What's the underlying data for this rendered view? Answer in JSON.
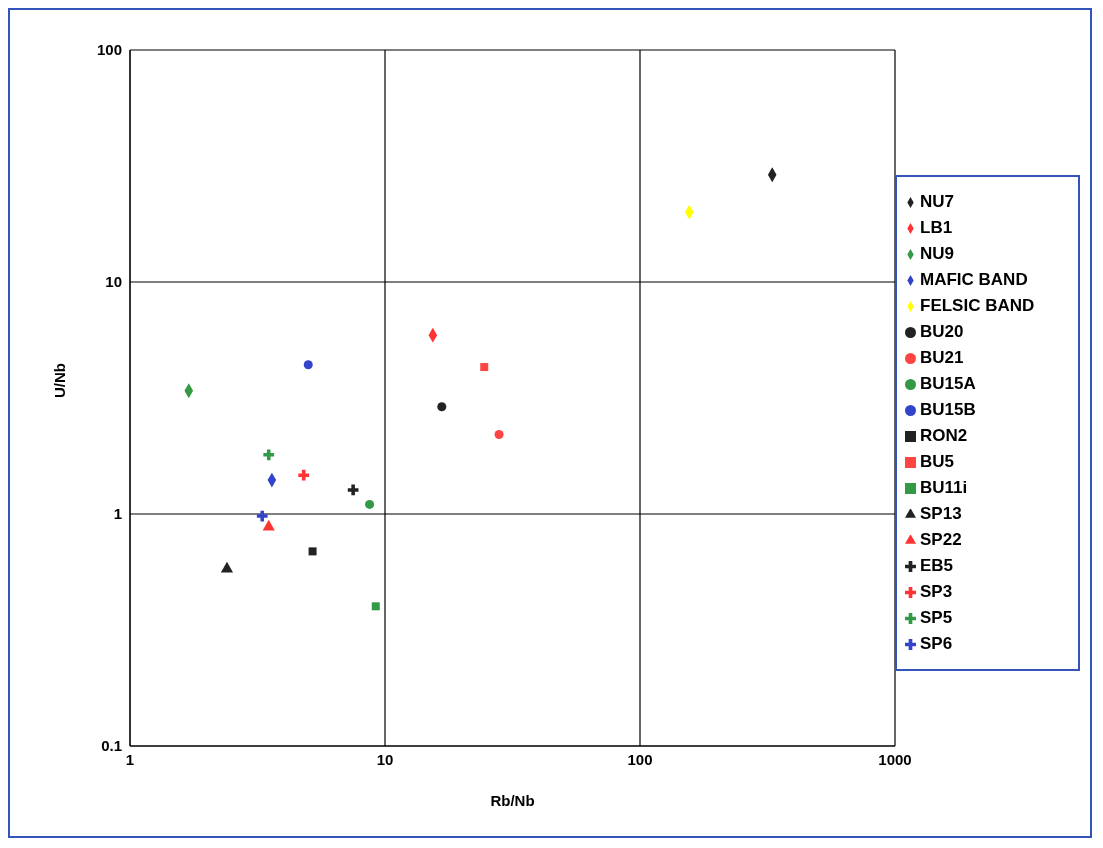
{
  "chart_data": {
    "type": "scatter",
    "xlabel": "Rb/Nb",
    "ylabel": "U/Nb",
    "log": "xy",
    "grid": true,
    "legend": "right",
    "xlim": [
      1,
      1000
    ],
    "ylim": [
      0.1,
      100
    ],
    "xticks": [
      1,
      10,
      100,
      1000
    ],
    "yticks": [
      0.1,
      1,
      10,
      100
    ],
    "series": [
      {
        "name": "NU7",
        "color": "#222222",
        "marker": "diamond",
        "x": [
          330
        ],
        "values": [
          29
        ]
      },
      {
        "name": "LB1",
        "color": "#ff3333",
        "marker": "diamond",
        "x": [
          15.4
        ],
        "values": [
          5.9
        ]
      },
      {
        "name": "NU9",
        "color": "#339944",
        "marker": "diamond",
        "x": [
          1.7
        ],
        "values": [
          3.4
        ]
      },
      {
        "name": "MAFIC BAND",
        "color": "#3344cc",
        "marker": "diamond",
        "x": [
          3.6
        ],
        "values": [
          1.4
        ]
      },
      {
        "name": "FELSIC BAND",
        "color": "#ffff00",
        "marker": "diamond",
        "x": [
          156
        ],
        "values": [
          20
        ]
      },
      {
        "name": "BU20",
        "color": "#222222",
        "marker": "circle",
        "x": [
          16.7
        ],
        "values": [
          2.9
        ]
      },
      {
        "name": "BU21",
        "color": "#ff4444",
        "marker": "circle",
        "x": [
          28
        ],
        "values": [
          2.2
        ]
      },
      {
        "name": "BU15A",
        "color": "#339944",
        "marker": "circle",
        "x": [
          8.7
        ],
        "values": [
          1.1
        ]
      },
      {
        "name": "BU15B",
        "color": "#3344cc",
        "marker": "circle",
        "x": [
          5
        ],
        "values": [
          4.4
        ]
      },
      {
        "name": "RON2",
        "color": "#222222",
        "marker": "square",
        "x": [
          5.2
        ],
        "values": [
          0.69
        ]
      },
      {
        "name": "BU5",
        "color": "#ff4444",
        "marker": "square",
        "x": [
          24.5
        ],
        "values": [
          4.3
        ]
      },
      {
        "name": "BU11i",
        "color": "#339944",
        "marker": "square",
        "x": [
          9.2
        ],
        "values": [
          0.4
        ]
      },
      {
        "name": "SP13",
        "color": "#222222",
        "marker": "triangle",
        "x": [
          2.4
        ],
        "values": [
          0.58
        ]
      },
      {
        "name": "SP22",
        "color": "#ff3333",
        "marker": "triangle",
        "x": [
          3.5
        ],
        "values": [
          0.88
        ]
      },
      {
        "name": "EB5",
        "color": "#222222",
        "marker": "cross",
        "x": [
          7.5
        ],
        "values": [
          1.27
        ]
      },
      {
        "name": "SP3",
        "color": "#ff3333",
        "marker": "cross",
        "x": [
          4.8
        ],
        "values": [
          1.47
        ]
      },
      {
        "name": "SP5",
        "color": "#339944",
        "marker": "cross",
        "x": [
          3.5
        ],
        "values": [
          1.8
        ]
      },
      {
        "name": "SP6",
        "color": "#3344cc",
        "marker": "cross",
        "x": [
          3.3
        ],
        "values": [
          0.98
        ]
      }
    ]
  }
}
